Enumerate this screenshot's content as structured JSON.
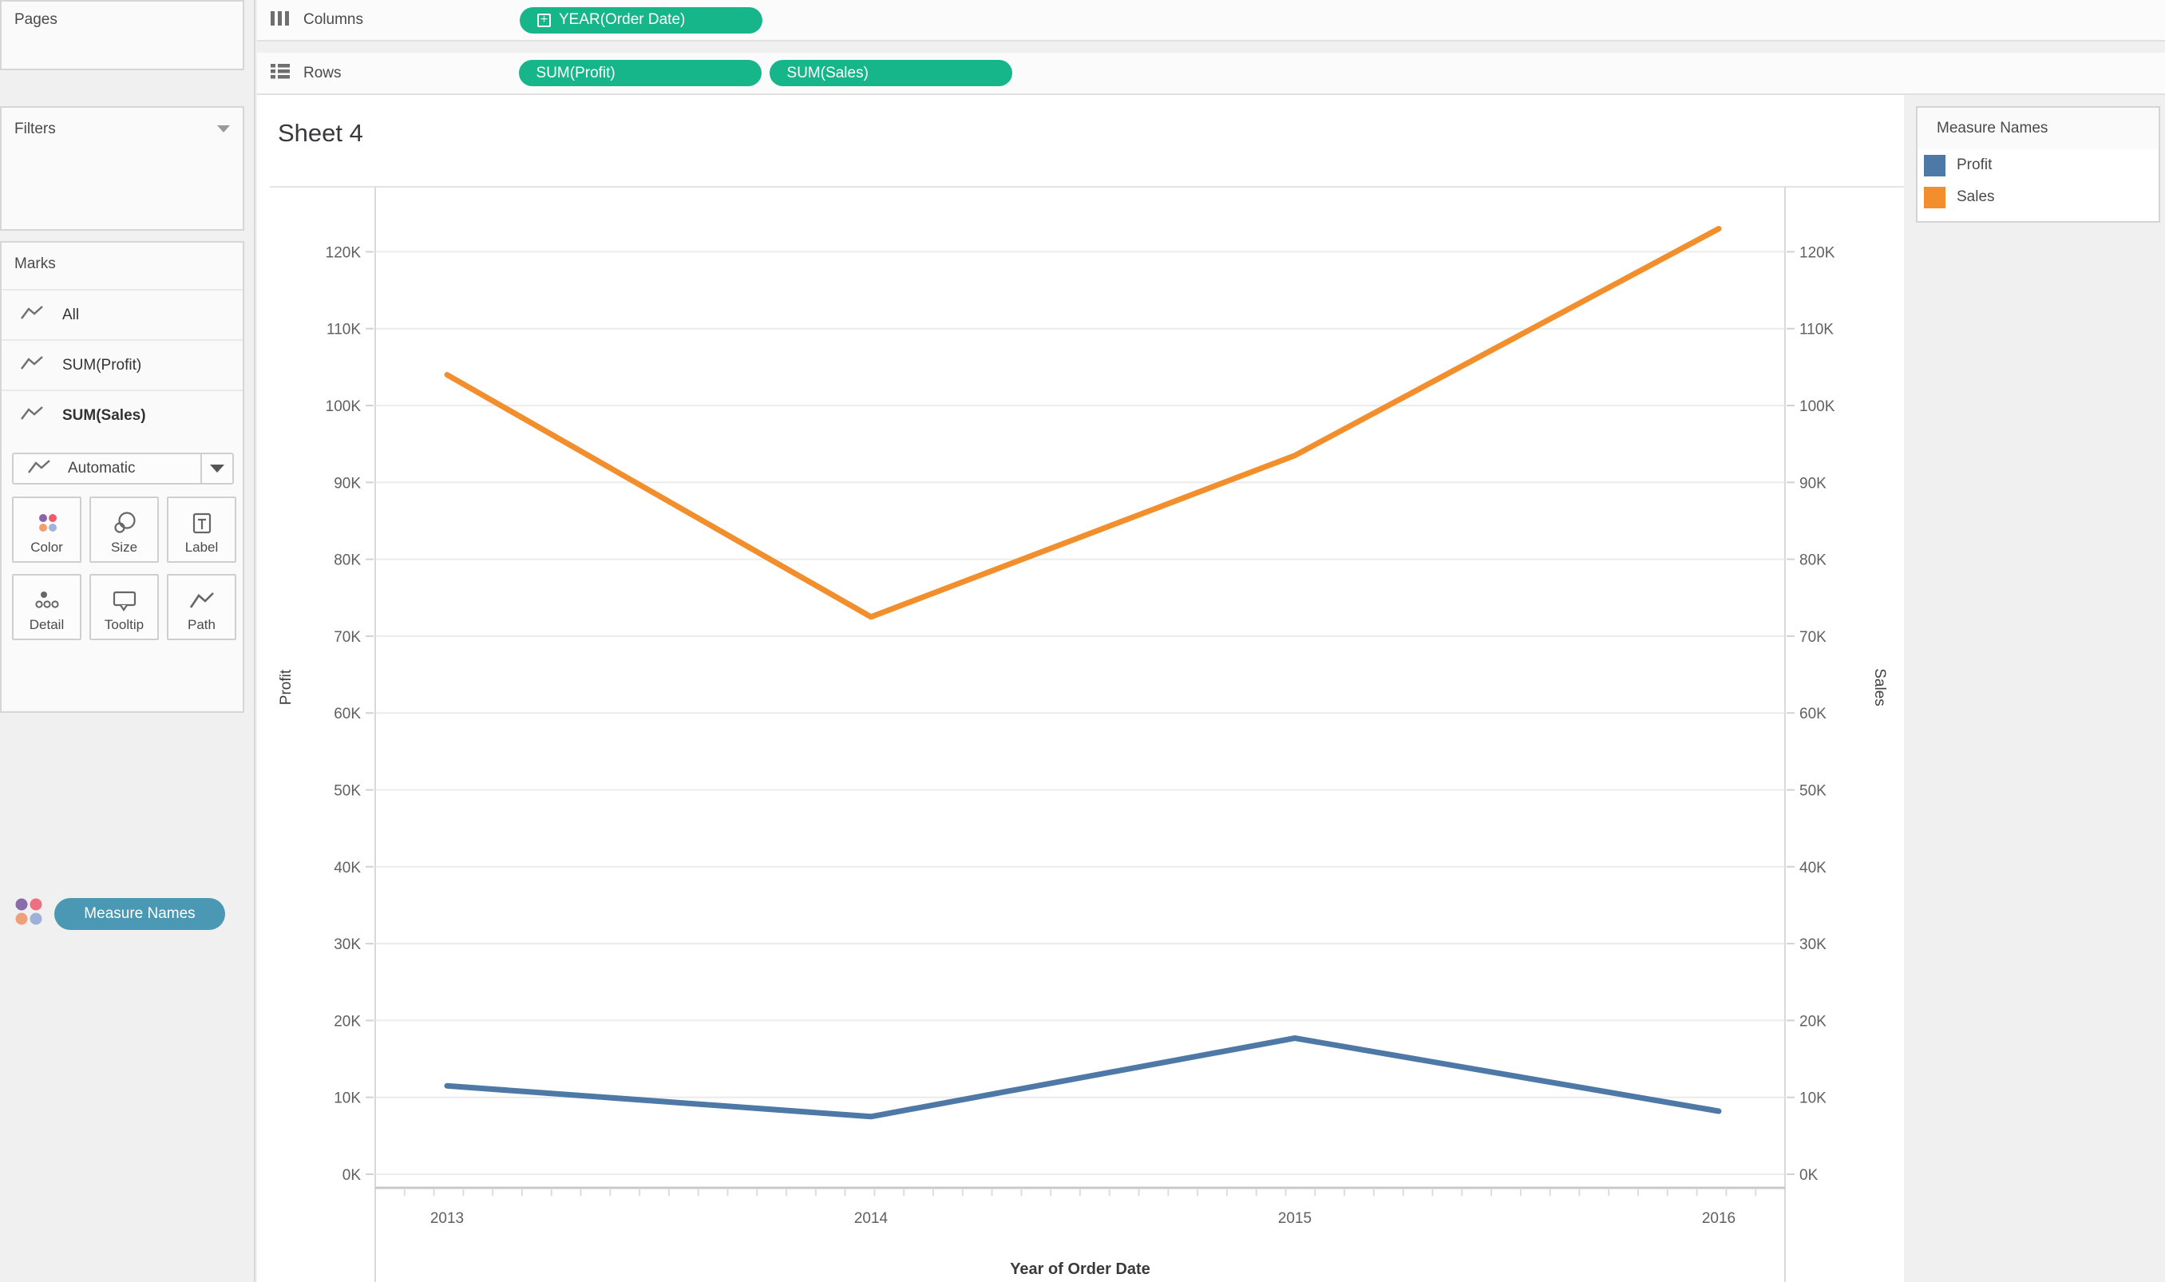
{
  "sidebar": {
    "pages": {
      "label": "Pages"
    },
    "filters": {
      "label": "Filters"
    },
    "marks": {
      "label": "Marks",
      "items": [
        {
          "label": "All",
          "bold": false
        },
        {
          "label": "SUM(Profit)",
          "bold": false
        },
        {
          "label": "SUM(Sales)",
          "bold": true
        }
      ],
      "mark_type": "Automatic",
      "buttons": [
        "Color",
        "Size",
        "Label",
        "Detail",
        "Tooltip",
        "Path"
      ],
      "color_pill": "Measure Names"
    }
  },
  "shelves": {
    "columns": {
      "label": "Columns",
      "pills": [
        "YEAR(Order Date)"
      ]
    },
    "rows": {
      "label": "Rows",
      "pills": [
        "SUM(Profit)",
        "SUM(Sales)"
      ]
    }
  },
  "sheet": {
    "title": "Sheet 4"
  },
  "legend": {
    "title": "Measure Names",
    "entries": [
      {
        "label": "Profit",
        "color": "#4e79a7"
      },
      {
        "label": "Sales",
        "color": "#f28e2b"
      }
    ]
  },
  "chart_data": {
    "type": "line",
    "x": [
      2013,
      2014,
      2015,
      2016
    ],
    "xlabel": "Year of Order Date",
    "grid": true,
    "left_axis": {
      "title": "Profit",
      "range": [
        0,
        125000
      ],
      "tick_step": 10000,
      "tick_labels": [
        "0K",
        "10K",
        "20K",
        "30K",
        "40K",
        "50K",
        "60K",
        "70K",
        "80K",
        "90K",
        "100K",
        "110K",
        "120K"
      ]
    },
    "right_axis": {
      "title": "Sales",
      "range": [
        0,
        125000
      ],
      "tick_step": 10000,
      "tick_labels": [
        "0K",
        "10K",
        "20K",
        "30K",
        "40K",
        "50K",
        "60K",
        "70K",
        "80K",
        "90K",
        "100K",
        "110K",
        "120K"
      ]
    },
    "series": [
      {
        "name": "Profit",
        "axis": "left",
        "color": "#4e79a7",
        "values": [
          11500,
          7500,
          17700,
          8200
        ]
      },
      {
        "name": "Sales",
        "axis": "right",
        "color": "#f28e2b",
        "values": [
          104000,
          72500,
          93500,
          123000
        ]
      }
    ]
  },
  "colors": {
    "pill_green": "#17b58a",
    "measure_names_pill": "#4a98b3",
    "profit_blue": "#4e79a7",
    "sales_orange": "#f28e2b"
  }
}
